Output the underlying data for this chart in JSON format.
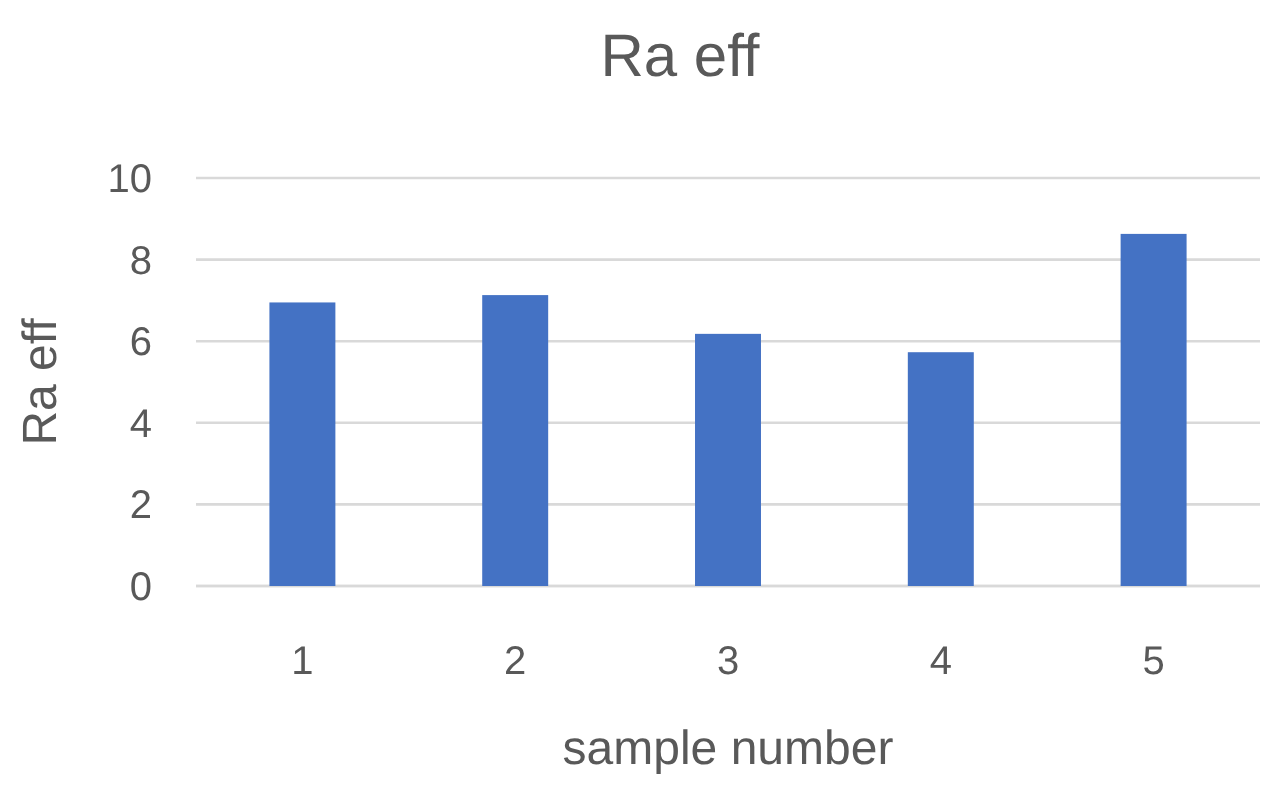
{
  "chart_data": {
    "type": "bar",
    "title": "Ra eff",
    "xlabel": "sample number",
    "ylabel": "Ra eff",
    "categories": [
      "1",
      "2",
      "3",
      "4",
      "5"
    ],
    "values": [
      6.95,
      7.13,
      6.18,
      5.73,
      8.63
    ],
    "color": "#4472c4",
    "ylim": [
      0,
      10
    ],
    "yticks": [
      0,
      2,
      4,
      6,
      8,
      10
    ],
    "grid": "y"
  }
}
